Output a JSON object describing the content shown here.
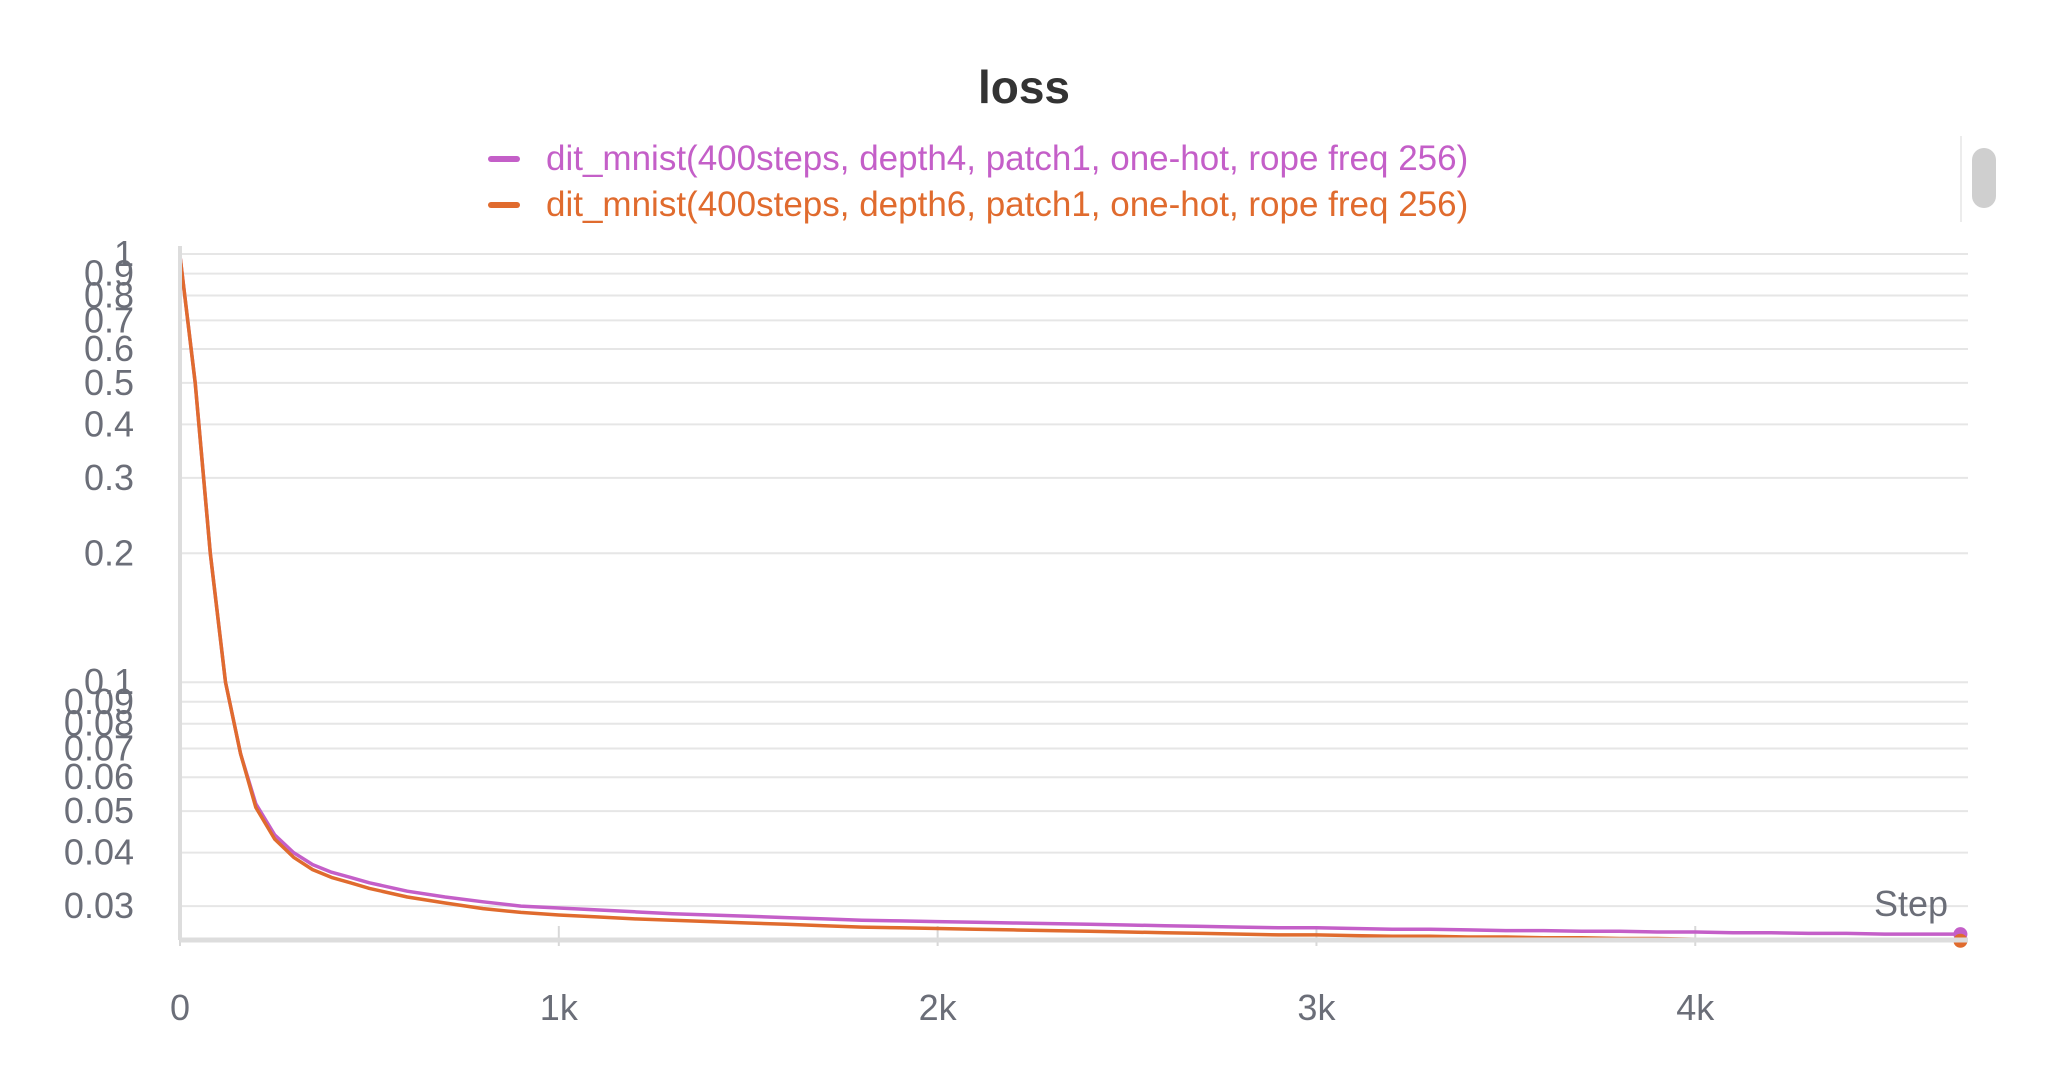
{
  "chart_data": {
    "type": "line",
    "title": "loss",
    "xlabel": "Step",
    "ylabel": "",
    "y_scale": "log",
    "xlim": [
      0,
      4720
    ],
    "ylim": [
      0.025,
      1
    ],
    "grid": true,
    "legend_position": "top-center",
    "x_ticks": [
      0,
      1000,
      2000,
      3000,
      4000
    ],
    "x_tick_labels": [
      "0",
      "1k",
      "2k",
      "3k",
      "4k"
    ],
    "y_ticks": [
      1,
      0.9,
      0.8,
      0.7,
      0.6,
      0.5,
      0.4,
      0.3,
      0.2,
      0.1,
      0.09,
      0.08,
      0.07,
      0.06,
      0.05,
      0.04,
      0.03
    ],
    "y_tick_labels": [
      "1",
      "0.9",
      "0.8",
      "0.7",
      "0.6",
      "0.5",
      "0.4",
      "0.3",
      "0.2",
      "0.1",
      "0.09",
      "0.08",
      "0.07",
      "0.06",
      "0.05",
      "0.04",
      "0.03"
    ],
    "series": [
      {
        "name": "dit_mnist(400steps, depth4, patch1, one-hot, rope freq 256)",
        "color": "#c45fc8",
        "x": [
          0,
          40,
          80,
          120,
          160,
          200,
          250,
          300,
          350,
          400,
          450,
          500,
          600,
          700,
          800,
          900,
          1000,
          1100,
          1200,
          1300,
          1400,
          1500,
          1600,
          1700,
          1800,
          1900,
          2000,
          2100,
          2200,
          2300,
          2400,
          2500,
          2600,
          2700,
          2800,
          2900,
          3000,
          3100,
          3200,
          3300,
          3400,
          3500,
          3600,
          3700,
          3800,
          3900,
          4000,
          4100,
          4200,
          4300,
          4400,
          4500,
          4600,
          4700
        ],
        "y": [
          0.99,
          0.5,
          0.2,
          0.1,
          0.068,
          0.052,
          0.044,
          0.04,
          0.0375,
          0.036,
          0.035,
          0.034,
          0.0325,
          0.0315,
          0.0307,
          0.03,
          0.0297,
          0.0294,
          0.0291,
          0.0288,
          0.0286,
          0.0284,
          0.0282,
          0.028,
          0.0278,
          0.0277,
          0.0276,
          0.0275,
          0.0274,
          0.0273,
          0.0272,
          0.0271,
          0.027,
          0.0269,
          0.0268,
          0.0267,
          0.0267,
          0.0266,
          0.0265,
          0.0265,
          0.0264,
          0.0263,
          0.0263,
          0.0262,
          0.0262,
          0.0261,
          0.0261,
          0.026,
          0.026,
          0.0259,
          0.0259,
          0.0258,
          0.0258,
          0.0258
        ]
      },
      {
        "name": "dit_mnist(400steps, depth6, patch1, one-hot, rope freq 256)",
        "color": "#e06b2e",
        "x": [
          0,
          40,
          80,
          120,
          160,
          200,
          250,
          300,
          350,
          400,
          450,
          500,
          600,
          700,
          800,
          900,
          1000,
          1100,
          1200,
          1300,
          1400,
          1500,
          1600,
          1700,
          1800,
          1900,
          2000,
          2100,
          2200,
          2300,
          2400,
          2500,
          2600,
          2700,
          2800,
          2900,
          3000,
          3100,
          3200,
          3300,
          3400,
          3500,
          3600,
          3700,
          3800,
          3900,
          4000,
          4100,
          4200,
          4300,
          4400,
          4500,
          4600,
          4700
        ],
        "y": [
          0.99,
          0.5,
          0.2,
          0.1,
          0.068,
          0.051,
          0.043,
          0.039,
          0.0365,
          0.035,
          0.034,
          0.033,
          0.0315,
          0.0305,
          0.0296,
          0.029,
          0.0286,
          0.0283,
          0.028,
          0.0278,
          0.0276,
          0.0274,
          0.0272,
          0.027,
          0.0268,
          0.0267,
          0.0266,
          0.0265,
          0.0264,
          0.0263,
          0.0262,
          0.0261,
          0.026,
          0.0259,
          0.0258,
          0.0257,
          0.0257,
          0.0256,
          0.0255,
          0.0255,
          0.0254,
          0.0254,
          0.0253,
          0.0253,
          0.0252,
          0.0252,
          0.0251,
          0.0251,
          0.0251,
          0.025,
          0.025,
          0.025,
          0.0249,
          0.0249
        ]
      }
    ]
  }
}
